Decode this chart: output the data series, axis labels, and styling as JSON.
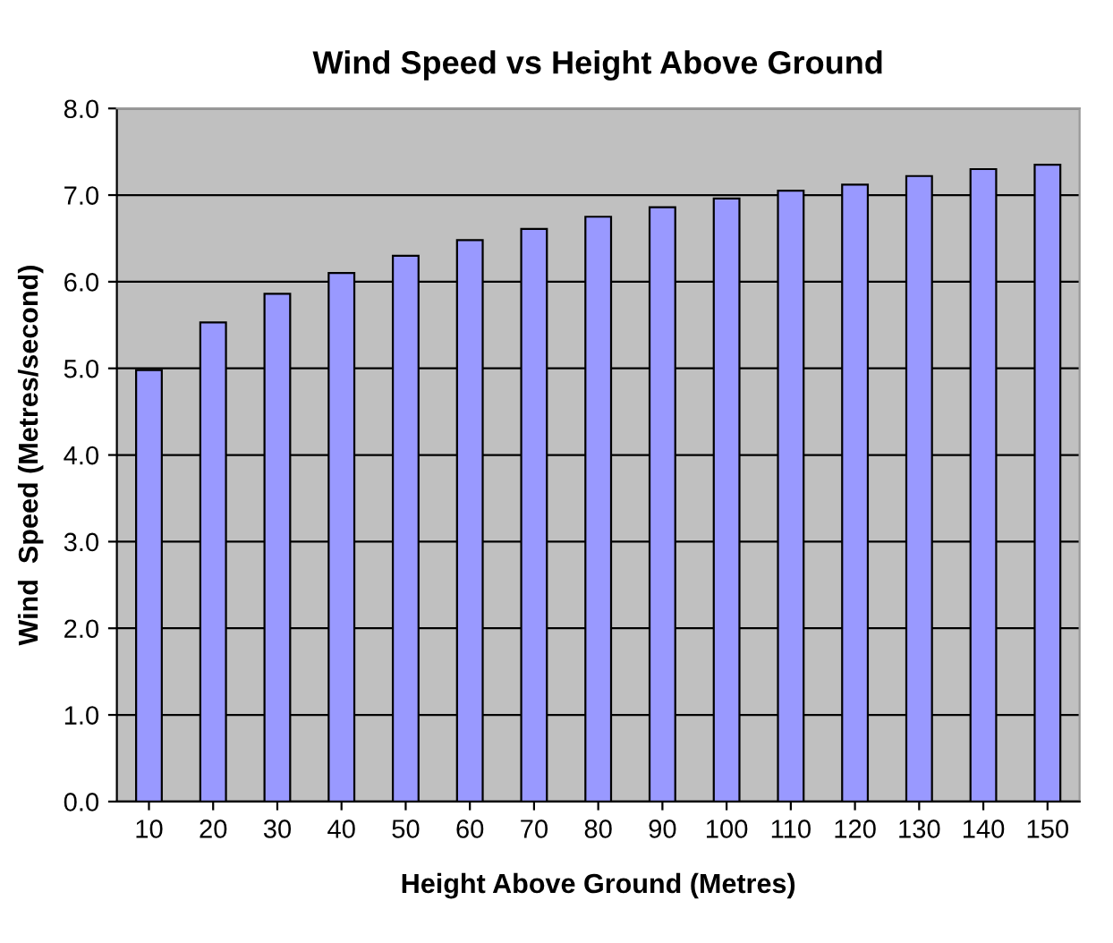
{
  "chart_data": {
    "type": "bar",
    "title": "Wind Speed vs Height Above Ground",
    "xlabel": "Height Above Ground (Metres)",
    "ylabel": "Wind  Speed (Metres/second)",
    "categories": [
      "10",
      "20",
      "30",
      "40",
      "50",
      "60",
      "70",
      "80",
      "90",
      "100",
      "110",
      "120",
      "130",
      "140",
      "150"
    ],
    "values": [
      4.98,
      5.53,
      5.86,
      6.1,
      6.3,
      6.48,
      6.61,
      6.75,
      6.86,
      6.96,
      7.05,
      7.12,
      7.22,
      7.3,
      7.35
    ],
    "color": "#9999ff",
    "ylim": [
      0,
      8
    ],
    "yticks": [
      {
        "value": 0,
        "label": "0.0"
      },
      {
        "value": 1,
        "label": "1.0"
      },
      {
        "value": 2,
        "label": "2.0"
      },
      {
        "value": 3,
        "label": "3.0"
      },
      {
        "value": 4,
        "label": "4.0"
      },
      {
        "value": 5,
        "label": "5.0"
      },
      {
        "value": 6,
        "label": "6.0"
      },
      {
        "value": 7,
        "label": "7.0"
      },
      {
        "value": 8,
        "label": "8.0"
      }
    ],
    "grid": "y"
  }
}
